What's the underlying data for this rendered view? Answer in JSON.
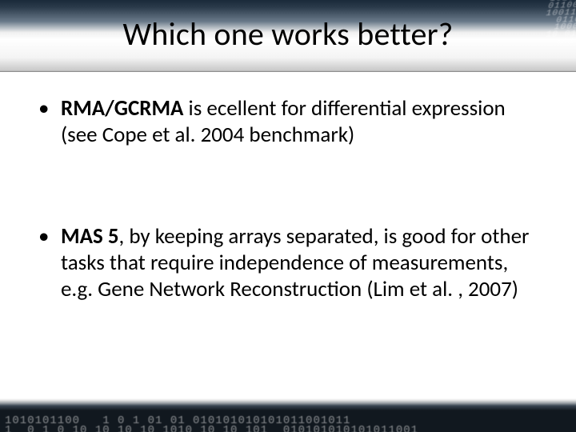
{
  "slide": {
    "title": "Which one works better?",
    "bullets": [
      {
        "lead": "RMA/GCRMA",
        "rest": " is ecellent for differential expression (see Cope et al. 2004 benchmark)"
      },
      {
        "lead": "MAS 5",
        "rest": ", by keeping arrays separated, is good for other tasks that require independence of measurements, e.g. Gene Network Reconstruction (Lim et al. , 2007)"
      }
    ],
    "decor": {
      "header_binary": " 1010100101\n 0110010010\n1001110 01\n 01101001\n 100001 1\n 10 011010\n1010101",
      "footer_binary": "1010101100   1 0 1 01 01 010101010101011001011\n1  0 1 0 10 10 10 10 1010 10 10 101  010101010101011001"
    },
    "colors": {
      "text": "#000000",
      "background": "#ffffff",
      "header_dark": "#1a2a3a",
      "footer_dark": "#11181f"
    },
    "typography": {
      "title_fontsize_pt": 30,
      "body_fontsize_pt": 20,
      "font_family": "Calibri"
    }
  }
}
